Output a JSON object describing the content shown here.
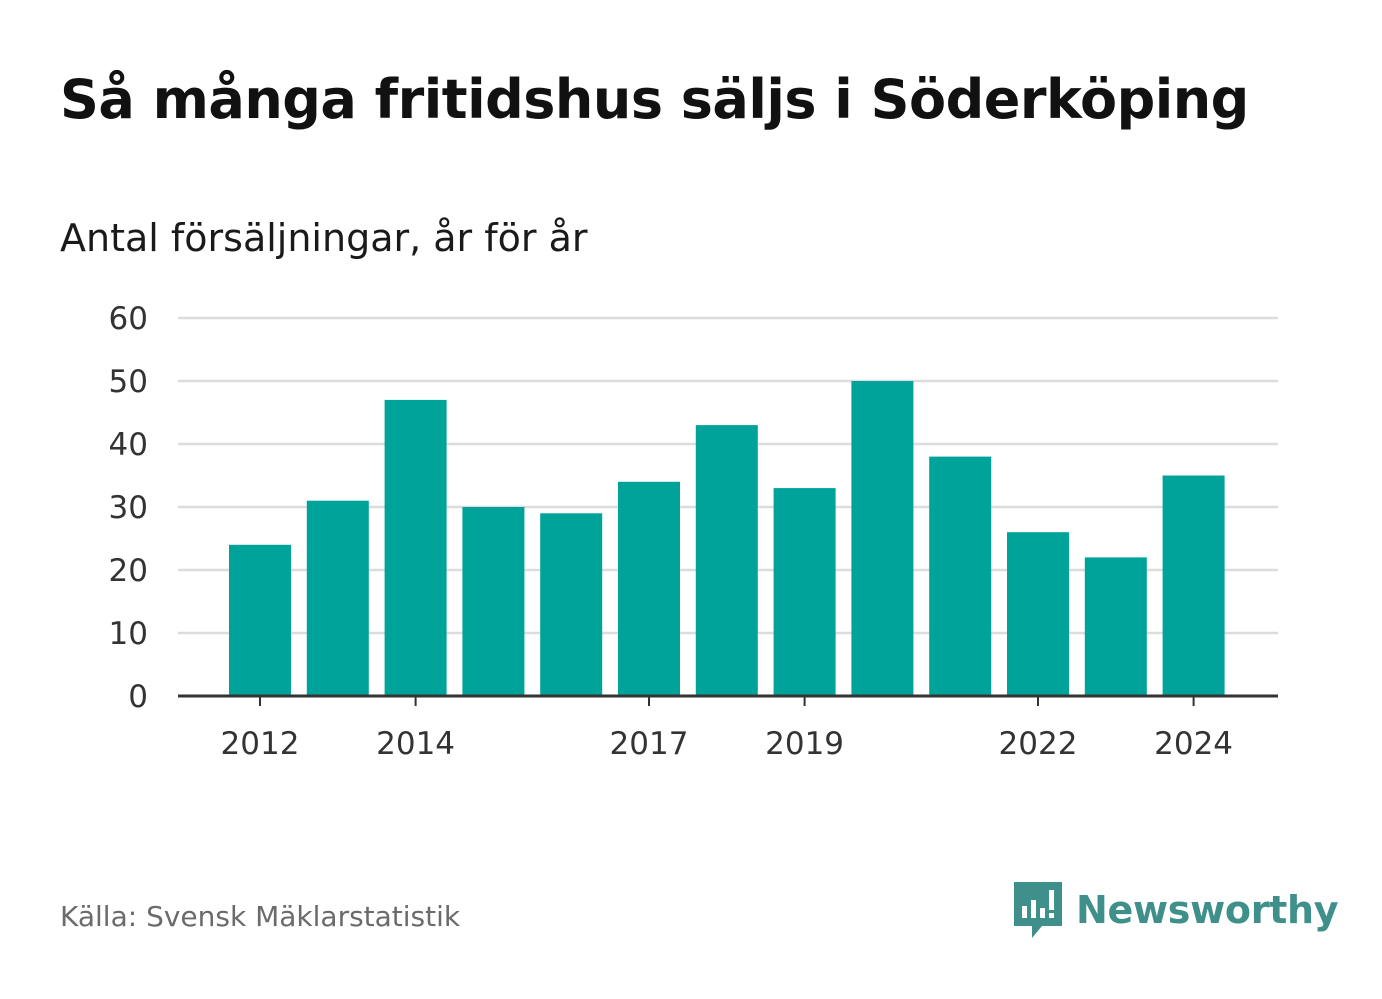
{
  "chart_data": {
    "type": "bar",
    "title": "Så många fritidshus säljs i Söderköping",
    "subtitle": "Antal försäljningar, år för år",
    "categories": [
      "2012",
      "2013",
      "2014",
      "2015",
      "2016",
      "2017",
      "2018",
      "2019",
      "2020",
      "2021",
      "2022",
      "2023",
      "2024"
    ],
    "x_tick_labels": [
      "2012",
      "2014",
      "2017",
      "2019",
      "2022",
      "2024"
    ],
    "values": [
      24,
      31,
      47,
      30,
      29,
      34,
      43,
      33,
      50,
      38,
      26,
      22,
      35
    ],
    "ylim": [
      0,
      60
    ],
    "y_ticks": [
      0,
      10,
      20,
      30,
      40,
      50,
      60
    ],
    "grid": true,
    "bar_color": "#00a39a",
    "grid_color": "#dcdcdc",
    "axis_color": "#333333"
  },
  "footer": {
    "source": "Källa: Svensk Mäklarstatistik",
    "brand": "Newsworthy",
    "brand_color": "#3f8f8a"
  }
}
